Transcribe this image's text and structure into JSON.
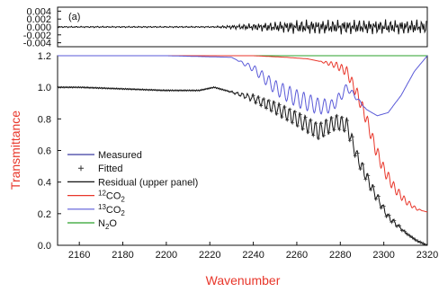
{
  "chart_data": [
    {
      "panel": "upper",
      "panel_label": "(a)",
      "type": "line",
      "ylim": [
        -0.005,
        0.005
      ],
      "y_ticks": [
        "0.004",
        "0.002",
        "0.000",
        "-0.002",
        "-0.004"
      ],
      "y_tick_values": [
        0.004,
        0.002,
        0.0,
        -0.002,
        -0.004
      ],
      "series": [
        {
          "name": "Residual (upper panel)",
          "color": "#111111"
        }
      ]
    },
    {
      "panel": "lower",
      "type": "line",
      "xlabel": "Wavenumber",
      "ylabel": "Transmittance",
      "xlim": [
        2150,
        2320
      ],
      "ylim": [
        0.0,
        1.2
      ],
      "x_ticks": [
        "2160",
        "2180",
        "2200",
        "2220",
        "2240",
        "2260",
        "2280",
        "2300",
        "2320"
      ],
      "x_tick_values": [
        2160,
        2180,
        2200,
        2220,
        2240,
        2260,
        2280,
        2300,
        2320
      ],
      "y_ticks": [
        "0.0",
        "0.2",
        "0.4",
        "0.6",
        "0.8",
        "1.0",
        "1.2"
      ],
      "y_tick_values": [
        0.0,
        0.2,
        0.4,
        0.6,
        0.8,
        1.0,
        1.2
      ],
      "legend_position": "lower-left",
      "legend": [
        {
          "label": "Measured",
          "symbol": "line",
          "color": "#3a3aa0"
        },
        {
          "label": "Fitted",
          "symbol": "plus",
          "color": "#333333"
        },
        {
          "label": "Residual (upper panel)",
          "symbol": "line",
          "color": "#111111"
        },
        {
          "label": "12CO2",
          "sup": "12",
          "base": "CO",
          "sub": "2",
          "symbol": "line",
          "color": "#e8362a"
        },
        {
          "label": "13CO2",
          "sup": "13",
          "base": "CO",
          "sub": "2",
          "symbol": "line",
          "color": "#5a5ad8"
        },
        {
          "label": "N2O",
          "base": "N",
          "sub": "2",
          "tail": "O",
          "symbol": "line",
          "color": "#2aa02a"
        }
      ],
      "series": [
        {
          "name": "Measured",
          "color": "#111111",
          "x": [
            2150,
            2160,
            2180,
            2200,
            2215,
            2222,
            2230,
            2240,
            2250,
            2260,
            2270,
            2278,
            2283,
            2288,
            2295,
            2302,
            2310,
            2315,
            2320
          ],
          "y": [
            1.0,
            1.0,
            0.99,
            0.98,
            0.98,
            1.0,
            0.97,
            0.93,
            0.87,
            0.8,
            0.72,
            0.78,
            0.76,
            0.55,
            0.35,
            0.18,
            0.08,
            0.03,
            0.0
          ]
        },
        {
          "name": "12CO2",
          "color": "#e8362a",
          "x": [
            2150,
            2200,
            2240,
            2255,
            2265,
            2272,
            2278,
            2283,
            2288,
            2292,
            2296,
            2300,
            2305,
            2310,
            2315,
            2320
          ],
          "y": [
            1.2,
            1.2,
            1.2,
            1.19,
            1.18,
            1.16,
            1.14,
            1.1,
            0.95,
            0.8,
            0.62,
            0.48,
            0.36,
            0.28,
            0.23,
            0.21
          ]
        },
        {
          "name": "13CO2",
          "color": "#5a5ad8",
          "x": [
            2150,
            2200,
            2230,
            2240,
            2250,
            2260,
            2270,
            2276,
            2280,
            2283,
            2287,
            2292,
            2297,
            2302,
            2308,
            2314,
            2320
          ],
          "y": [
            1.2,
            1.2,
            1.19,
            1.12,
            1.0,
            0.93,
            0.88,
            0.88,
            0.94,
            1.0,
            0.94,
            0.86,
            0.82,
            0.84,
            0.95,
            1.1,
            1.2
          ]
        },
        {
          "name": "N2O",
          "color": "#2aa02a",
          "x": [
            2150,
            2200,
            2320
          ],
          "y": [
            1.2,
            1.2,
            1.2
          ]
        }
      ]
    }
  ]
}
